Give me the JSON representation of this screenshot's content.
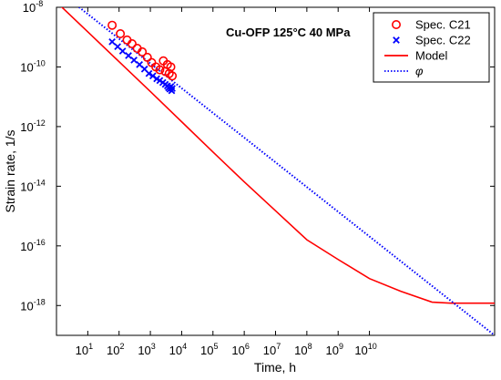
{
  "chart_data": {
    "type": "scatter",
    "title": "Cu-OFP 125°C 40 MPa",
    "xlabel": "Time, h",
    "ylabel": "Strain rate, 1/s",
    "x_scale": "log",
    "y_scale": "log",
    "xlim": [
      1,
      100000000000000.0
    ],
    "ylim": [
      1e-19,
      1e-08
    ],
    "grid": false,
    "legend_position": "top-right",
    "x_ticks": [
      {
        "value": 10,
        "mant": "10",
        "exp": "1"
      },
      {
        "value": 100,
        "mant": "10",
        "exp": "2"
      },
      {
        "value": 1000,
        "mant": "10",
        "exp": "3"
      },
      {
        "value": 10000,
        "mant": "10",
        "exp": "4"
      },
      {
        "value": 100000,
        "mant": "10",
        "exp": "5"
      },
      {
        "value": 1000000,
        "mant": "10",
        "exp": "6"
      },
      {
        "value": 10000000,
        "mant": "10",
        "exp": "7"
      },
      {
        "value": 100000000,
        "mant": "10",
        "exp": "8"
      },
      {
        "value": 1000000000,
        "mant": "10",
        "exp": "9"
      },
      {
        "value": 10000000000,
        "mant": "10",
        "exp": "10"
      }
    ],
    "y_ticks": [
      {
        "value": 1e-18,
        "mant": "10",
        "exp": "-18"
      },
      {
        "value": 1e-16,
        "mant": "10",
        "exp": "-16"
      },
      {
        "value": 1e-14,
        "mant": "10",
        "exp": "-14"
      },
      {
        "value": 1e-12,
        "mant": "10",
        "exp": "-12"
      },
      {
        "value": 1e-10,
        "mant": "10",
        "exp": "-10"
      },
      {
        "value": 1e-08,
        "mant": "10",
        "exp": "-8"
      }
    ],
    "series": [
      {
        "name": "Spec. C21",
        "kind": "scatter",
        "marker": "circle",
        "color": "#ff0000",
        "points": [
          [
            60,
            2.5e-09
          ],
          [
            110,
            1.3e-09
          ],
          [
            180,
            8e-10
          ],
          [
            260,
            6e-10
          ],
          [
            380,
            4.2e-10
          ],
          [
            550,
            3.2e-10
          ],
          [
            800,
            2.1e-10
          ],
          [
            1100,
            1.4e-10
          ],
          [
            1500,
            1e-10
          ],
          [
            2000,
            8e-11
          ],
          [
            2600,
            1.6e-10
          ],
          [
            3000,
            7e-11
          ],
          [
            3500,
            1.2e-10
          ],
          [
            4000,
            6e-11
          ],
          [
            4500,
            1e-10
          ],
          [
            5000,
            5e-11
          ]
        ]
      },
      {
        "name": "Spec. C22",
        "kind": "scatter",
        "marker": "x",
        "color": "#0000ff",
        "points": [
          [
            60,
            7e-10
          ],
          [
            90,
            4.8e-10
          ],
          [
            130,
            3.4e-10
          ],
          [
            200,
            2.4e-10
          ],
          [
            300,
            1.7e-10
          ],
          [
            450,
            1.2e-10
          ],
          [
            650,
            8.5e-11
          ],
          [
            900,
            6e-11
          ],
          [
            1200,
            5e-11
          ],
          [
            1600,
            4e-11
          ],
          [
            2000,
            3.5e-11
          ],
          [
            2500,
            3e-11
          ],
          [
            3000,
            2.6e-11
          ],
          [
            3500,
            2.3e-11
          ],
          [
            3800,
            2e-11
          ],
          [
            4200,
            1.8e-11
          ],
          [
            4500,
            2.2e-11
          ],
          [
            4800,
            1.6e-11
          ],
          [
            5000,
            1.9e-11
          ]
        ]
      },
      {
        "name": "Model",
        "kind": "line",
        "dash": "solid",
        "color": "#ff0000",
        "points": [
          [
            1,
            1.5e-08
          ],
          [
            10,
            1.5e-09
          ],
          [
            100,
            1.5e-10
          ],
          [
            1000,
            1.5e-11
          ],
          [
            10000,
            1.45e-12
          ],
          [
            100000,
            1.4e-13
          ],
          [
            1000000,
            1.4e-14
          ],
          [
            10000000,
            1.5e-15
          ],
          [
            100000000,
            1.6e-16
          ],
          [
            1000000000,
            3.5e-17
          ],
          [
            10000000000,
            8e-18
          ],
          [
            100000000000,
            3e-18
          ],
          [
            1000000000000,
            1.3e-18
          ],
          [
            4000000000000,
            1.2e-18
          ],
          [
            100000000000000,
            1.2e-18
          ]
        ]
      },
      {
        "name": "φ",
        "kind": "line",
        "dash": "dotted",
        "color": "#0000ff",
        "points": [
          [
            1,
            4e-08
          ],
          [
            100000000000000,
            1e-19
          ]
        ]
      }
    ]
  }
}
